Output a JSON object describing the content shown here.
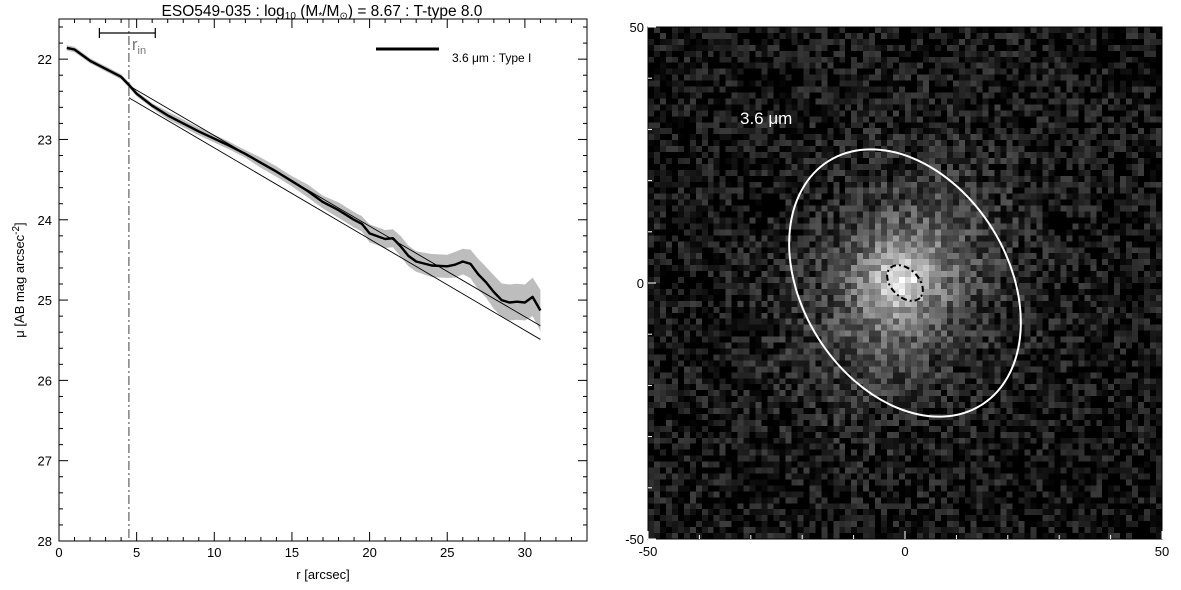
{
  "chart_data": [
    {
      "type": "line",
      "title": {
        "galaxy": "ESO549-035",
        "mass_label": "log",
        "mass_sub": "10",
        "mass_ratio": "(M",
        "mass_star": "*",
        "mass_over": "/M",
        "mass_sun": "⊙",
        "mass_close": ")",
        "mass_value": "= 8.67",
        "ttype": "T-type 8.0",
        "sep": ":"
      },
      "xlabel": "r [arcsec]",
      "ylabel": "μ [AB mag arcsec",
      "ylabel_exp": "-2",
      "ylabel_close": "]",
      "xlim": [
        0,
        34
      ],
      "ylim": [
        28,
        21.5
      ],
      "y_inverted": true,
      "xticks": [
        0,
        5,
        10,
        15,
        20,
        25,
        30
      ],
      "yticks": [
        22,
        23,
        24,
        25,
        26,
        27,
        28
      ],
      "legend": {
        "label": "3.6 μm : Type I",
        "position": "top-right"
      },
      "r_in": {
        "value": 4.5,
        "err_low": 2.6,
        "err_high": 6.2,
        "label": "r",
        "label_sub": "in"
      },
      "series": [
        {
          "name": "3.6 μm : Type I",
          "x": [
            0.5,
            1,
            1.5,
            2,
            2.5,
            3,
            3.5,
            4,
            4.5,
            5,
            6,
            7,
            8,
            9,
            10,
            11,
            12,
            13,
            14,
            15,
            16,
            17,
            18,
            19,
            19.5,
            20,
            21,
            21.5,
            22,
            22.5,
            23,
            24,
            25,
            25.5,
            26,
            26.5,
            27,
            27.5,
            28,
            28.5,
            29,
            29.5,
            30,
            30.5,
            31
          ],
          "y": [
            21.86,
            21.88,
            21.95,
            22.02,
            22.07,
            22.12,
            22.17,
            22.22,
            22.32,
            22.43,
            22.58,
            22.7,
            22.8,
            22.9,
            22.99,
            23.08,
            23.18,
            23.29,
            23.4,
            23.52,
            23.64,
            23.78,
            23.88,
            24.0,
            24.05,
            24.17,
            24.24,
            24.23,
            24.33,
            24.45,
            24.52,
            24.57,
            24.58,
            24.56,
            24.52,
            24.55,
            24.68,
            24.78,
            24.9,
            25.0,
            25.03,
            25.02,
            25.03,
            24.96,
            25.13
          ],
          "err": [
            0.02,
            0.02,
            0.02,
            0.02,
            0.02,
            0.02,
            0.02,
            0.02,
            0.02,
            0.02,
            0.02,
            0.03,
            0.03,
            0.03,
            0.03,
            0.03,
            0.03,
            0.04,
            0.04,
            0.04,
            0.05,
            0.05,
            0.06,
            0.06,
            0.06,
            0.07,
            0.07,
            0.07,
            0.08,
            0.08,
            0.08,
            0.09,
            0.09,
            0.1,
            0.1,
            0.11,
            0.12,
            0.12,
            0.13,
            0.13,
            0.14,
            0.14,
            0.14,
            0.15,
            0.16
          ]
        }
      ],
      "fit_lines": [
        {
          "x": [
            4.5,
            31
          ],
          "y": [
            22.33,
            25.32
          ]
        },
        {
          "x": [
            4.5,
            31
          ],
          "y": [
            22.48,
            25.49
          ]
        }
      ]
    },
    {
      "type": "heatmap",
      "label": "3.6 μm",
      "xlim": [
        -50,
        50
      ],
      "ylim": [
        -50,
        50
      ],
      "xticks": [
        -50,
        0,
        50
      ],
      "yticks": [
        -50,
        0,
        50
      ],
      "colormap": "grayscale",
      "outer_ellipse": {
        "cx": 0,
        "cy": 0,
        "a": 28,
        "b": 20,
        "angle_deg": 58,
        "color": "#ffffff",
        "style": "solid"
      },
      "inner_ellipse": {
        "cx": 0,
        "cy": 0,
        "a": 4.1,
        "b": 2.7,
        "angle_deg": 45,
        "color": "#000000",
        "style": "dash-dot"
      }
    }
  ]
}
